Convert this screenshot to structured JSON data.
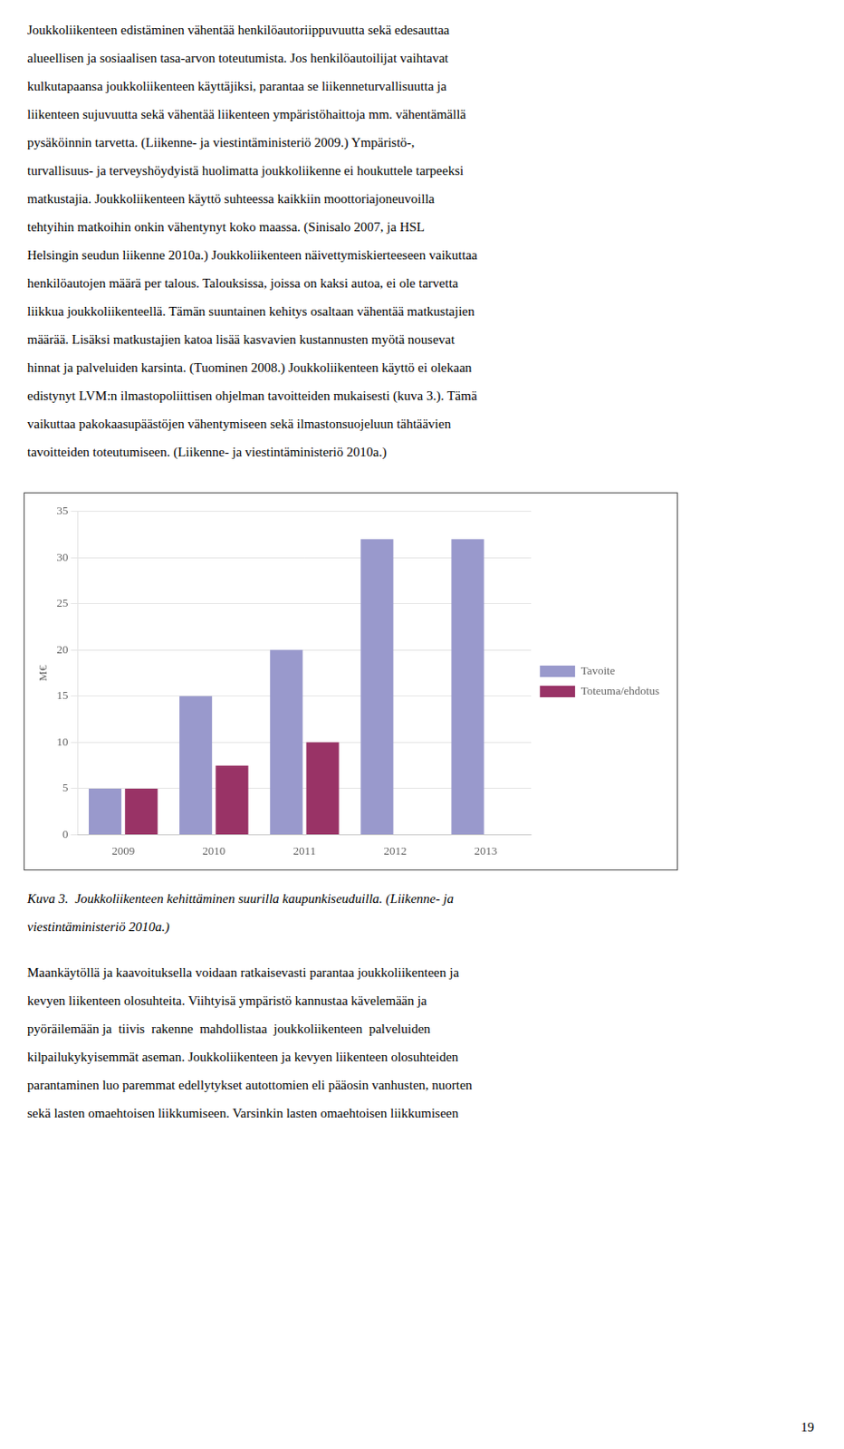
{
  "chart_data": {
    "type": "bar",
    "categories": [
      "2009",
      "2010",
      "2011",
      "2012",
      "2013"
    ],
    "series": [
      {
        "name": "Tavoite",
        "color": "#9999CC",
        "values": [
          5,
          15,
          20,
          32,
          32
        ]
      },
      {
        "name": "Toteuma/ehdotus",
        "color": "#993366",
        "values": [
          5,
          7.5,
          10,
          0,
          0
        ]
      }
    ],
    "y_label": "M€",
    "ylim": [
      0,
      35
    ],
    "yticks": [
      0,
      5,
      10,
      15,
      20,
      25,
      30,
      35
    ],
    "grid": true,
    "legend": "right"
  },
  "top_text": [
    "Joukkoliikenteen edistäminen vähentää henkilöautoriippuvuutta sekä edesauttaa",
    "alueellisen ja sosiaalisen tasa-arvon toteutumista. Jos henkilöautoilijat vaihtavat",
    "kulkutapaansa joukkoliikenteen käyttäjiksi, parantaa se liikenneturvallisuutta ja",
    "liikenteen sujuvuutta sekä vähentää liikenteen ympäristöhaittoja mm. vähentämällä",
    "pysäköinnin tarvetta. (Liikenne- ja viestintäministeriö 2009.) Ympäristö-,",
    "turvallisuus- ja terveyshöydyistä huolimatta joukkoliikenne ei houkuttele tarpeeksi",
    "matkustajia. Joukkoliikenteen käyttö suhteessa kaikkiin moottoriajoneuvoilla",
    "tehtyihin matkoihin onkin vähentynyt koko maassa. (Sinisalo 2007, ja HSL",
    "Helsingin seudun liikenne 2010a.) Joukkoliikenteen näivettymiskierteeseen vaikuttaa",
    "henkilöautojen määrä per talous. Talouksissa, joissa on kaksi autoa, ei ole tarvetta",
    "liikkua joukkoliikenteellä. Tämän suuntainen kehitys osaltaan vähentää matkustajien",
    "määrää. Lisäksi matkustajien katoa lisää kasvavien kustannusten myötä nousevat",
    "hinnat ja palveluiden karsinta. (Tuominen 2008.) Joukkoliikenteen käyttö ei olekaan",
    "edistynyt LVM:n ilmastopoliittisen ohjelman tavoitteiden mukaisesti (kuva 3.). Tämä",
    "vaikuttaa pakokaasupäästöjen vähentymiseen sekä ilmastonsuojeluun tähtäävien",
    "tavoitteiden toteutumiseen. (Liikenne- ja viestintäministeriö 2010a.)"
  ],
  "caption": [
    "Kuva 3.  Joukkoliikenteen kehittäminen suurilla kaupunkiseuduilla. (Liikenne- ja",
    "viestintäministeriö 2010a.)"
  ],
  "bottom_text": [
    "Maankäytöllä ja kaavoituksella voidaan ratkaisevasti parantaa joukkoliikenteen ja",
    "kevyen liikenteen olosuhteita. Viihtyisä ympäristö kannustaa kävelemään ja",
    "pyöräilemään ja  tiivis  rakenne  mahdollistaa  joukkoliikenteen  palveluiden",
    "kilpailukykyisemmät aseman. Joukkoliikenteen ja kevyen liikenteen olosuhteiden",
    "parantaminen luo paremmat edellytykset autottomien eli pääosin vanhusten, nuorten",
    "sekä lasten omaehtoisen liikkumiseen. Varsinkin lasten omaehtoisen liikkumiseen"
  ],
  "page_number": "19"
}
